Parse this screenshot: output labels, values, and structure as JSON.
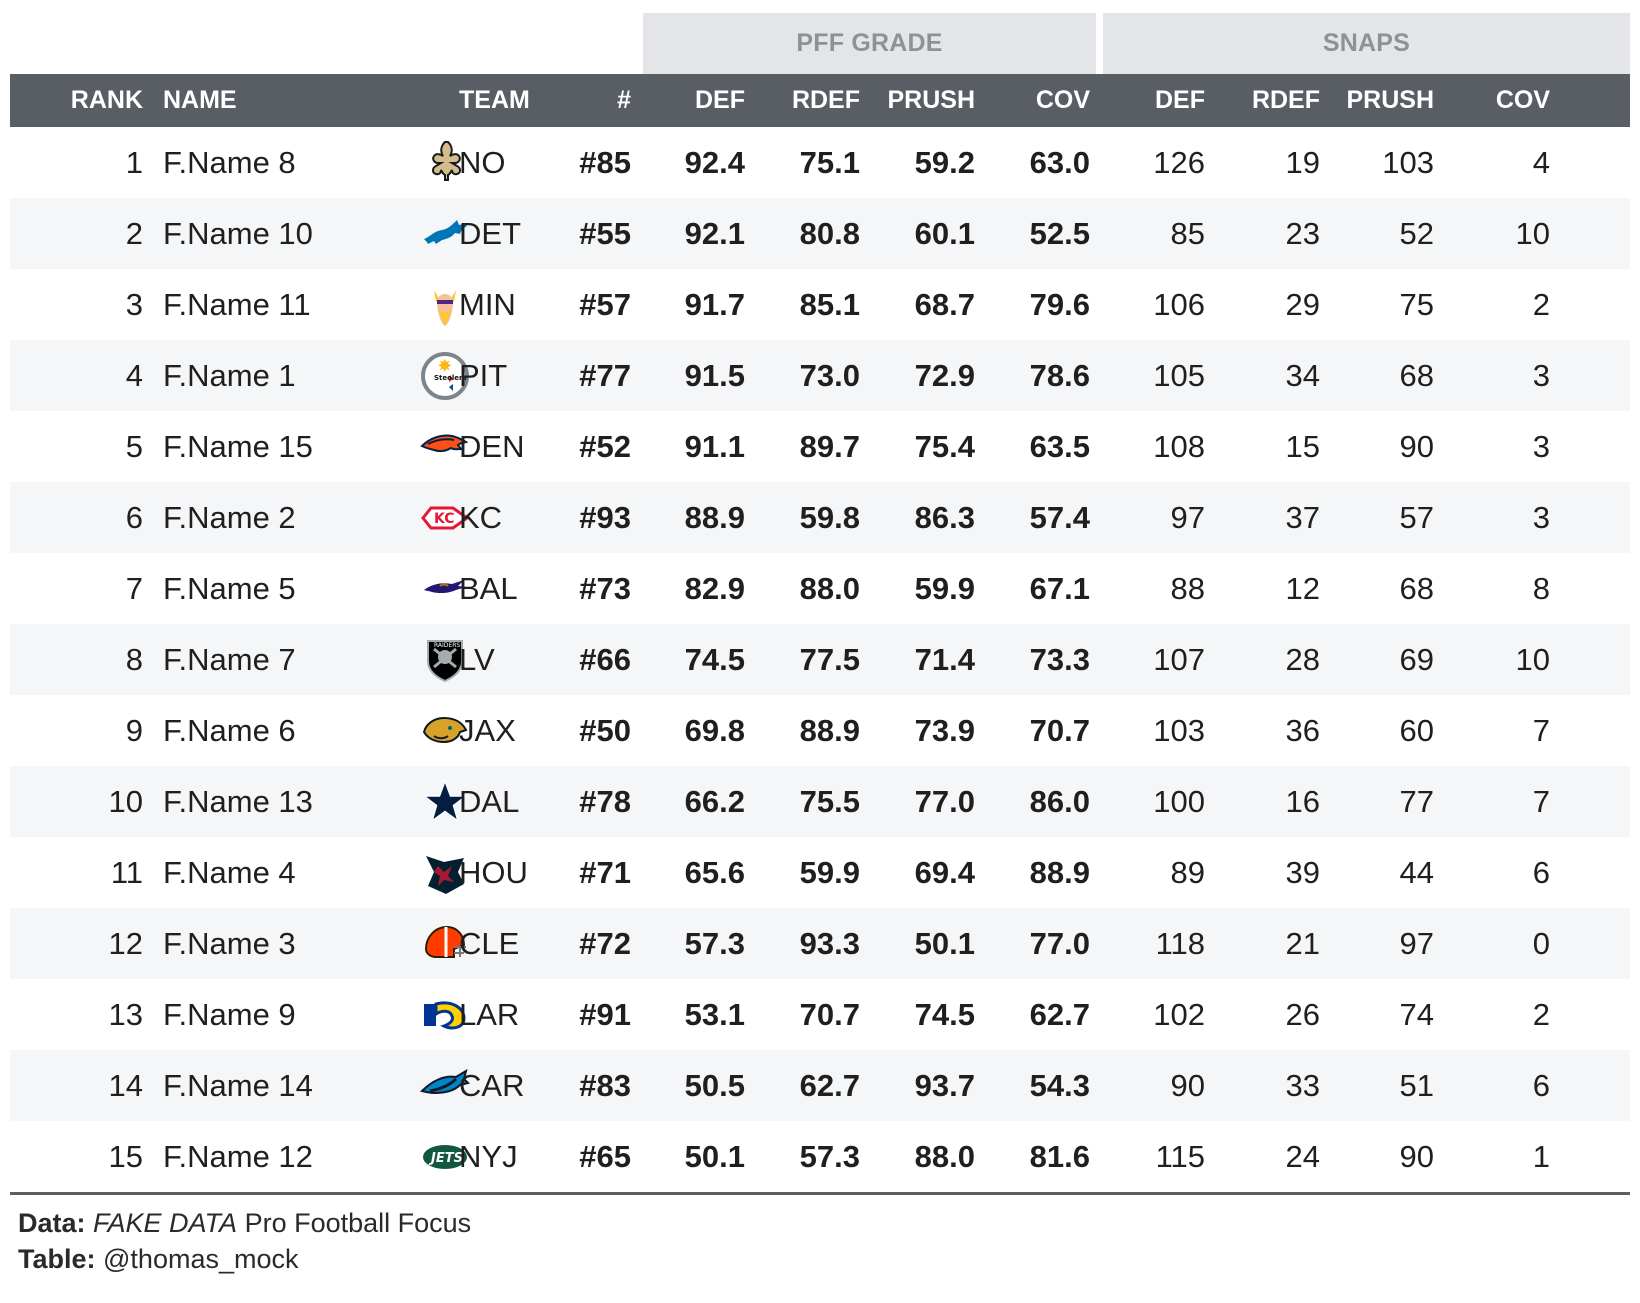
{
  "spanners": {
    "grade": "PFF GRADE",
    "snaps": "SNAPS"
  },
  "headers": {
    "rank": "RANK",
    "name": "NAME",
    "team": "TEAM",
    "number": "#",
    "grade_def": "DEF",
    "grade_rdef": "RDEF",
    "grade_prush": "PRUSH",
    "grade_cov": "COV",
    "snaps_def": "DEF",
    "snaps_rdef": "RDEF",
    "snaps_prush": "PRUSH",
    "snaps_cov": "COV"
  },
  "colors": {
    "header_bg": "#585e64",
    "spanner_bg": "#e3e5e9",
    "spanner_text": "#8e9297",
    "zebra": "#f5f6f8"
  },
  "chart_data": {
    "type": "table",
    "columns": [
      "RANK",
      "NAME",
      "TEAM",
      "#",
      "DEF",
      "RDEF",
      "PRUSH",
      "COV",
      "DEF",
      "RDEF",
      "PRUSH",
      "COV"
    ],
    "rows": [
      {
        "rank": "1",
        "name": "F.Name 8",
        "team": "NO",
        "logo": "saints-fleur-de-lis-icon",
        "number": "#85",
        "g_def": "92.4",
        "g_rdef": "75.1",
        "g_prush": "59.2",
        "g_cov": "63.0",
        "s_def": "126",
        "s_rdef": "19",
        "s_prush": "103",
        "s_cov": "4"
      },
      {
        "rank": "2",
        "name": "F.Name 10",
        "team": "DET",
        "logo": "lions-icon",
        "number": "#55",
        "g_def": "92.1",
        "g_rdef": "80.8",
        "g_prush": "60.1",
        "g_cov": "52.5",
        "s_def": "85",
        "s_rdef": "23",
        "s_prush": "52",
        "s_cov": "10"
      },
      {
        "rank": "3",
        "name": "F.Name 11",
        "team": "MIN",
        "logo": "vikings-icon",
        "number": "#57",
        "g_def": "91.7",
        "g_rdef": "85.1",
        "g_prush": "68.7",
        "g_cov": "79.6",
        "s_def": "106",
        "s_rdef": "29",
        "s_prush": "75",
        "s_cov": "2"
      },
      {
        "rank": "4",
        "name": "F.Name 1",
        "team": "PIT",
        "logo": "steelers-icon",
        "number": "#77",
        "g_def": "91.5",
        "g_rdef": "73.0",
        "g_prush": "72.9",
        "g_cov": "78.6",
        "s_def": "105",
        "s_rdef": "34",
        "s_prush": "68",
        "s_cov": "3"
      },
      {
        "rank": "5",
        "name": "F.Name 15",
        "team": "DEN",
        "logo": "broncos-icon",
        "number": "#52",
        "g_def": "91.1",
        "g_rdef": "89.7",
        "g_prush": "75.4",
        "g_cov": "63.5",
        "s_def": "108",
        "s_rdef": "15",
        "s_prush": "90",
        "s_cov": "3"
      },
      {
        "rank": "6",
        "name": "F.Name 2",
        "team": "KC",
        "logo": "chiefs-icon",
        "number": "#93",
        "g_def": "88.9",
        "g_rdef": "59.8",
        "g_prush": "86.3",
        "g_cov": "57.4",
        "s_def": "97",
        "s_rdef": "37",
        "s_prush": "57",
        "s_cov": "3"
      },
      {
        "rank": "7",
        "name": "F.Name 5",
        "team": "BAL",
        "logo": "ravens-icon",
        "number": "#73",
        "g_def": "82.9",
        "g_rdef": "88.0",
        "g_prush": "59.9",
        "g_cov": "67.1",
        "s_def": "88",
        "s_rdef": "12",
        "s_prush": "68",
        "s_cov": "8"
      },
      {
        "rank": "8",
        "name": "F.Name 7",
        "team": "LV",
        "logo": "raiders-icon",
        "number": "#66",
        "g_def": "74.5",
        "g_rdef": "77.5",
        "g_prush": "71.4",
        "g_cov": "73.3",
        "s_def": "107",
        "s_rdef": "28",
        "s_prush": "69",
        "s_cov": "10"
      },
      {
        "rank": "9",
        "name": "F.Name 6",
        "team": "JAX",
        "logo": "jaguars-icon",
        "number": "#50",
        "g_def": "69.8",
        "g_rdef": "88.9",
        "g_prush": "73.9",
        "g_cov": "70.7",
        "s_def": "103",
        "s_rdef": "36",
        "s_prush": "60",
        "s_cov": "7"
      },
      {
        "rank": "10",
        "name": "F.Name 13",
        "team": "DAL",
        "logo": "cowboys-star-icon",
        "number": "#78",
        "g_def": "66.2",
        "g_rdef": "75.5",
        "g_prush": "77.0",
        "g_cov": "86.0",
        "s_def": "100",
        "s_rdef": "16",
        "s_prush": "77",
        "s_cov": "7"
      },
      {
        "rank": "11",
        "name": "F.Name 4",
        "team": "HOU",
        "logo": "texans-icon",
        "number": "#71",
        "g_def": "65.6",
        "g_rdef": "59.9",
        "g_prush": "69.4",
        "g_cov": "88.9",
        "s_def": "89",
        "s_rdef": "39",
        "s_prush": "44",
        "s_cov": "6"
      },
      {
        "rank": "12",
        "name": "F.Name 3",
        "team": "CLE",
        "logo": "browns-helmet-icon",
        "number": "#72",
        "g_def": "57.3",
        "g_rdef": "93.3",
        "g_prush": "50.1",
        "g_cov": "77.0",
        "s_def": "118",
        "s_rdef": "21",
        "s_prush": "97",
        "s_cov": "0"
      },
      {
        "rank": "13",
        "name": "F.Name 9",
        "team": "LAR",
        "logo": "rams-icon",
        "number": "#91",
        "g_def": "53.1",
        "g_rdef": "70.7",
        "g_prush": "74.5",
        "g_cov": "62.7",
        "s_def": "102",
        "s_rdef": "26",
        "s_prush": "74",
        "s_cov": "2"
      },
      {
        "rank": "14",
        "name": "F.Name 14",
        "team": "CAR",
        "logo": "panthers-icon",
        "number": "#83",
        "g_def": "50.5",
        "g_rdef": "62.7",
        "g_prush": "93.7",
        "g_cov": "54.3",
        "s_def": "90",
        "s_rdef": "33",
        "s_prush": "51",
        "s_cov": "6"
      },
      {
        "rank": "15",
        "name": "F.Name 12",
        "team": "NYJ",
        "logo": "jets-icon",
        "number": "#65",
        "g_def": "50.1",
        "g_rdef": "57.3",
        "g_prush": "88.0",
        "g_cov": "81.6",
        "s_def": "115",
        "s_rdef": "24",
        "s_prush": "90",
        "s_cov": "1"
      }
    ]
  },
  "footer": {
    "data_key": "Data:",
    "data_italic": "FAKE DATA",
    "data_rest": " Pro Football Focus",
    "table_key": "Table:",
    "table_rest": " @thomas_mock"
  }
}
